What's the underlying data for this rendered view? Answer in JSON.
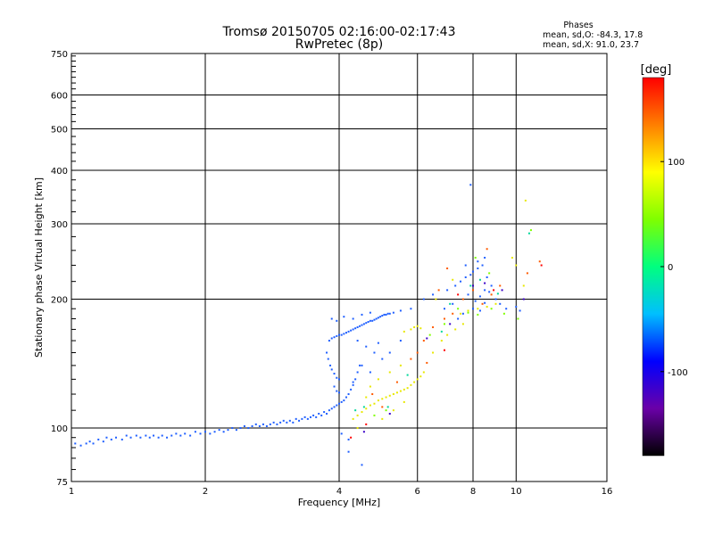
{
  "chart_data": {
    "type": "scatter",
    "title": "Tromsø 20150705 02:16:00-02:17:43",
    "subtitle": "RwPretec (8p)",
    "xlabel": "Frequency [MHz]",
    "ylabel": "Stationary phase Virtual Height [km]",
    "x_scale": "log",
    "y_scale": "log",
    "xlim": [
      1,
      16
    ],
    "ylim": [
      75,
      750
    ],
    "x_ticks": [
      1,
      2,
      4,
      6,
      8,
      10,
      16
    ],
    "x_tick_labels": [
      "1",
      "2",
      "4",
      "6",
      "8",
      "10",
      "16"
    ],
    "y_ticks": [
      75,
      100,
      200,
      300,
      400,
      500,
      600,
      750
    ],
    "y_tick_labels": [
      "75",
      "100",
      "200",
      "300",
      "400",
      "500",
      "600",
      "750"
    ],
    "grid_x": [
      1,
      2,
      4,
      6,
      8,
      10,
      16
    ],
    "grid_y": [
      75,
      100,
      200,
      300,
      400,
      500,
      600,
      750
    ],
    "phase_stats": {
      "title": "Phases",
      "line_o": "mean, sd,O: -84.3, 17.8",
      "line_x": "mean, sd,X:  91.0, 23.7"
    },
    "colorbar": {
      "label": "[deg]",
      "range": [
        -180,
        180
      ],
      "ticks": [
        100,
        0,
        -100
      ],
      "tick_labels": [
        "100",
        "0",
        "-100"
      ],
      "colormap": [
        "#000000",
        "#6a00a8",
        "#0000ff",
        "#00bfff",
        "#00ff7f",
        "#7fff00",
        "#ffff00",
        "#ff7f00",
        "#ff0000"
      ]
    },
    "series": [
      {
        "phase_deg": -100,
        "color": "#1f5fff",
        "points": [
          [
            1.02,
            92
          ],
          [
            1.05,
            91
          ],
          [
            1.08,
            92
          ],
          [
            1.1,
            93
          ],
          [
            1.12,
            92
          ],
          [
            1.15,
            94
          ],
          [
            1.18,
            93
          ],
          [
            1.2,
            95
          ],
          [
            1.23,
            94
          ],
          [
            1.26,
            95
          ],
          [
            1.3,
            94
          ],
          [
            1.33,
            96
          ],
          [
            1.36,
            95
          ],
          [
            1.4,
            96
          ],
          [
            1.43,
            95
          ],
          [
            1.47,
            96
          ],
          [
            1.5,
            95
          ],
          [
            1.53,
            96
          ],
          [
            1.57,
            95
          ],
          [
            1.6,
            96
          ],
          [
            1.64,
            95
          ],
          [
            1.68,
            96
          ],
          [
            1.72,
            97
          ],
          [
            1.76,
            96
          ],
          [
            1.8,
            97
          ],
          [
            1.85,
            96
          ],
          [
            1.9,
            98
          ],
          [
            1.95,
            97
          ],
          [
            2.0,
            98
          ],
          [
            2.05,
            97
          ],
          [
            2.1,
            98
          ],
          [
            2.15,
            99
          ],
          [
            2.2,
            98
          ],
          [
            2.25,
            99
          ],
          [
            2.3,
            100
          ],
          [
            2.35,
            99
          ],
          [
            2.4,
            100
          ],
          [
            2.45,
            101
          ],
          [
            2.5,
            100
          ],
          [
            2.55,
            101
          ],
          [
            2.6,
            102
          ],
          [
            2.65,
            101
          ],
          [
            2.7,
            102
          ],
          [
            2.75,
            101
          ],
          [
            2.8,
            102
          ],
          [
            2.85,
            103
          ],
          [
            2.9,
            102
          ],
          [
            2.95,
            103
          ],
          [
            3.0,
            104
          ],
          [
            3.05,
            103
          ],
          [
            3.1,
            104
          ],
          [
            3.15,
            103
          ],
          [
            3.2,
            105
          ],
          [
            3.25,
            104
          ],
          [
            3.3,
            105
          ],
          [
            3.35,
            106
          ],
          [
            3.4,
            105
          ],
          [
            3.45,
            106
          ],
          [
            3.5,
            107
          ],
          [
            3.55,
            106
          ],
          [
            3.6,
            108
          ],
          [
            3.65,
            107
          ],
          [
            3.7,
            109
          ],
          [
            3.75,
            108
          ],
          [
            3.8,
            110
          ],
          [
            3.85,
            111
          ],
          [
            3.9,
            112
          ],
          [
            3.95,
            113
          ],
          [
            4.0,
            114
          ],
          [
            4.05,
            115
          ],
          [
            4.1,
            116
          ],
          [
            4.15,
            118
          ],
          [
            4.2,
            120
          ],
          [
            4.25,
            123
          ],
          [
            4.3,
            126
          ],
          [
            4.35,
            130
          ],
          [
            4.4,
            135
          ],
          [
            4.45,
            140
          ],
          [
            3.8,
            160
          ],
          [
            3.85,
            162
          ],
          [
            3.9,
            163
          ],
          [
            3.95,
            164
          ],
          [
            4.0,
            165
          ],
          [
            4.05,
            165
          ],
          [
            4.1,
            166
          ],
          [
            4.15,
            167
          ],
          [
            4.2,
            168
          ],
          [
            4.25,
            169
          ],
          [
            4.3,
            170
          ],
          [
            4.35,
            171
          ],
          [
            4.4,
            172
          ],
          [
            4.45,
            173
          ],
          [
            4.5,
            174
          ],
          [
            4.55,
            175
          ],
          [
            4.6,
            176
          ],
          [
            4.65,
            177
          ],
          [
            4.7,
            178
          ],
          [
            4.75,
            178
          ],
          [
            4.8,
            179
          ],
          [
            4.85,
            180
          ],
          [
            4.9,
            181
          ],
          [
            4.95,
            182
          ],
          [
            5.0,
            183
          ],
          [
            5.05,
            184
          ],
          [
            5.1,
            184
          ],
          [
            5.15,
            185
          ],
          [
            5.2,
            185
          ],
          [
            5.3,
            186
          ],
          [
            3.75,
            150
          ],
          [
            3.78,
            145
          ],
          [
            3.82,
            140
          ],
          [
            3.85,
            137
          ],
          [
            3.9,
            134
          ],
          [
            3.95,
            131
          ],
          [
            4.0,
            130
          ],
          [
            3.9,
            125
          ],
          [
            3.95,
            122
          ],
          [
            4.0,
            121
          ],
          [
            3.85,
            180
          ],
          [
            3.95,
            178
          ],
          [
            4.1,
            182
          ],
          [
            4.3,
            180
          ],
          [
            4.5,
            184
          ],
          [
            4.7,
            186
          ],
          [
            5.5,
            188
          ],
          [
            5.8,
            190
          ],
          [
            6.2,
            200
          ],
          [
            6.5,
            205
          ],
          [
            7.0,
            210
          ],
          [
            7.3,
            215
          ],
          [
            7.5,
            220
          ],
          [
            7.7,
            225
          ],
          [
            7.9,
            228
          ],
          [
            8.0,
            232
          ],
          [
            8.2,
            236
          ],
          [
            8.4,
            240
          ],
          [
            8.6,
            225
          ],
          [
            8.8,
            215
          ],
          [
            7.8,
            205
          ],
          [
            8.1,
            198
          ],
          [
            8.3,
            203
          ],
          [
            8.5,
            210
          ],
          [
            8.7,
            208
          ],
          [
            9.0,
            200
          ],
          [
            9.2,
            195
          ],
          [
            9.5,
            190
          ],
          [
            10.0,
            192
          ],
          [
            10.2,
            188
          ],
          [
            7.4,
            180
          ],
          [
            7.6,
            185
          ],
          [
            8.0,
            190
          ],
          [
            8.3,
            188
          ],
          [
            8.5,
            196
          ],
          [
            7.2,
            195
          ],
          [
            6.9,
            190
          ],
          [
            7.7,
            240
          ],
          [
            8.2,
            245
          ],
          [
            8.5,
            250
          ],
          [
            4.4,
            160
          ],
          [
            4.6,
            155
          ],
          [
            4.8,
            150
          ],
          [
            5.0,
            145
          ],
          [
            4.5,
            140
          ],
          [
            4.7,
            135
          ],
          [
            4.3,
            128
          ],
          [
            4.9,
            158
          ],
          [
            5.2,
            150
          ],
          [
            5.5,
            160
          ],
          [
            4.5,
            82
          ],
          [
            4.2,
            88
          ],
          [
            7.9,
            370
          ],
          [
            4.05,
            97
          ],
          [
            4.2,
            94
          ]
        ]
      },
      {
        "phase_deg": 100,
        "color": "#e8e800",
        "points": [
          [
            4.3,
            105
          ],
          [
            4.4,
            107
          ],
          [
            4.5,
            109
          ],
          [
            4.6,
            111
          ],
          [
            4.7,
            113
          ],
          [
            4.8,
            114
          ],
          [
            4.9,
            116
          ],
          [
            5.0,
            117
          ],
          [
            5.1,
            118
          ],
          [
            5.2,
            119
          ],
          [
            5.3,
            120
          ],
          [
            5.4,
            121
          ],
          [
            5.5,
            122
          ],
          [
            5.6,
            123
          ],
          [
            5.7,
            124
          ],
          [
            5.8,
            126
          ],
          [
            5.9,
            128
          ],
          [
            6.0,
            130
          ],
          [
            6.1,
            132
          ],
          [
            6.2,
            135
          ],
          [
            5.8,
            170
          ],
          [
            5.9,
            172
          ],
          [
            6.0,
            173
          ],
          [
            5.6,
            168
          ],
          [
            6.1,
            171
          ],
          [
            7.5,
            185
          ],
          [
            7.8,
            188
          ],
          [
            8.2,
            190
          ],
          [
            8.6,
            192
          ],
          [
            9.0,
            195
          ],
          [
            6.5,
            150
          ],
          [
            6.8,
            160
          ],
          [
            7.0,
            165
          ],
          [
            7.3,
            170
          ],
          [
            7.6,
            175
          ],
          [
            5.2,
            135
          ],
          [
            5.5,
            140
          ],
          [
            4.9,
            130
          ],
          [
            4.6,
            118
          ],
          [
            4.4,
            100
          ],
          [
            5.0,
            105
          ],
          [
            5.3,
            110
          ],
          [
            4.7,
            125
          ],
          [
            10.5,
            340
          ],
          [
            10.0,
            240
          ],
          [
            9.8,
            250
          ],
          [
            6.6,
            200
          ],
          [
            7.2,
            222
          ],
          [
            10.4,
            215
          ],
          [
            5.6,
            115
          ]
        ]
      },
      {
        "phase_deg": 150,
        "color": "#ff5a00",
        "points": [
          [
            6.2,
            160
          ],
          [
            6.5,
            172
          ],
          [
            6.9,
            180
          ],
          [
            7.2,
            185
          ],
          [
            7.6,
            200
          ],
          [
            8.0,
            210
          ],
          [
            8.4,
            195
          ],
          [
            8.8,
            205
          ],
          [
            9.2,
            215
          ],
          [
            5.8,
            145
          ],
          [
            6.0,
            150
          ],
          [
            6.7,
            210
          ],
          [
            11.3,
            245
          ],
          [
            10.6,
            230
          ],
          [
            8.6,
            262
          ],
          [
            7.0,
            236
          ],
          [
            6.3,
            142
          ],
          [
            5.4,
            128
          ],
          [
            5.0,
            112
          ],
          [
            4.75,
            120
          ]
        ]
      },
      {
        "phase_deg": 60,
        "color": "#7fff00",
        "points": [
          [
            7.8,
            186
          ],
          [
            8.2,
            184
          ],
          [
            8.8,
            190
          ],
          [
            9.4,
            185
          ],
          [
            10.1,
            180
          ],
          [
            6.4,
            165
          ],
          [
            6.9,
            175
          ],
          [
            7.4,
            190
          ],
          [
            8.1,
            250
          ],
          [
            8.7,
            230
          ],
          [
            5.1,
            110
          ],
          [
            4.8,
            107
          ],
          [
            10.8,
            290
          ]
        ]
      },
      {
        "phase_deg": 0,
        "color": "#00d79a",
        "points": [
          [
            4.35,
            110
          ],
          [
            4.55,
            112
          ],
          [
            5.15,
            112
          ],
          [
            6.8,
            168
          ],
          [
            7.9,
            215
          ],
          [
            8.3,
            222
          ],
          [
            9.1,
            206
          ],
          [
            7.1,
            195
          ],
          [
            10.7,
            285
          ],
          [
            5.7,
            133
          ]
        ]
      },
      {
        "phase_deg": 150,
        "color": "#ff0000",
        "points": [
          [
            4.25,
            95
          ],
          [
            4.6,
            102
          ],
          [
            6.9,
            152
          ],
          [
            11.4,
            240
          ],
          [
            8.9,
            210
          ],
          [
            7.4,
            205
          ]
        ]
      },
      {
        "phase_deg": -140,
        "color": "#3a00c8",
        "points": [
          [
            4.55,
            98
          ],
          [
            5.2,
            108
          ],
          [
            6.3,
            162
          ],
          [
            8.0,
            215
          ],
          [
            8.5,
            218
          ],
          [
            9.3,
            210
          ],
          [
            7.1,
            175
          ],
          [
            10.4,
            200
          ]
        ]
      }
    ]
  }
}
